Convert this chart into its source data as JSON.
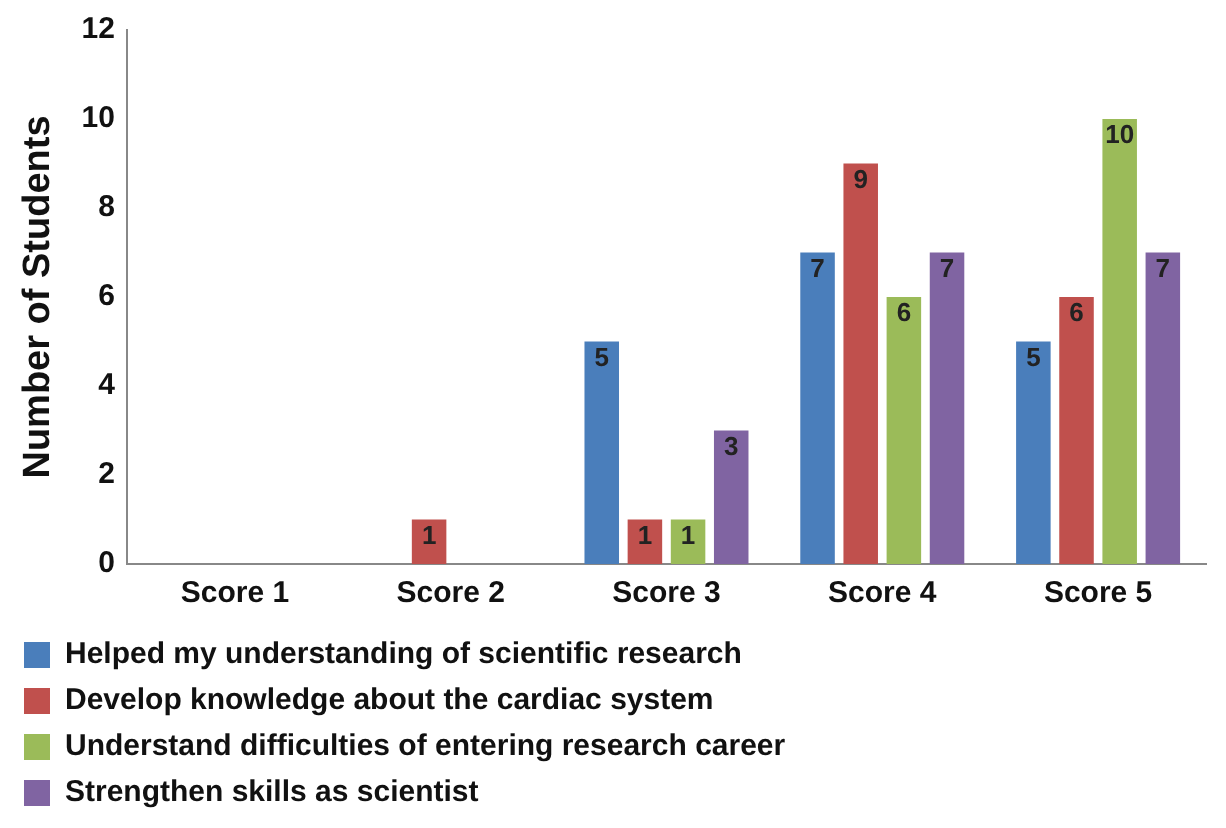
{
  "chart_data": {
    "type": "bar",
    "ylabel": "Number of Students",
    "categories": [
      "Score 1",
      "Score 2",
      "Score 3",
      "Score 4",
      "Score 5"
    ],
    "series": [
      {
        "name": "Helped my understanding of scientific research",
        "color": "#4a7ebb",
        "values": [
          0,
          0,
          5,
          7,
          5
        ],
        "value_labels": [
          null,
          null,
          "5",
          "7",
          "5"
        ]
      },
      {
        "name": "Develop knowledge about the cardiac system",
        "color": "#c0504d",
        "values": [
          0,
          1,
          1,
          9,
          6
        ],
        "value_labels": [
          null,
          "1",
          "1",
          "9",
          "6"
        ]
      },
      {
        "name": "Understand difficulties of entering research career",
        "color": "#9bbb59",
        "values": [
          0,
          0,
          1,
          6,
          10
        ],
        "value_labels": [
          null,
          null,
          "1",
          "6",
          "10"
        ]
      },
      {
        "name": "Strengthen skills as scientist",
        "color": "#8064a2",
        "values": [
          0,
          0,
          3,
          7,
          7
        ],
        "value_labels": [
          null,
          null,
          "3",
          "7",
          "7"
        ]
      }
    ],
    "ylim": [
      0,
      12
    ],
    "yticks": [
      0,
      2,
      4,
      6,
      8,
      10,
      12
    ],
    "grid": false,
    "legend": "bottom"
  }
}
